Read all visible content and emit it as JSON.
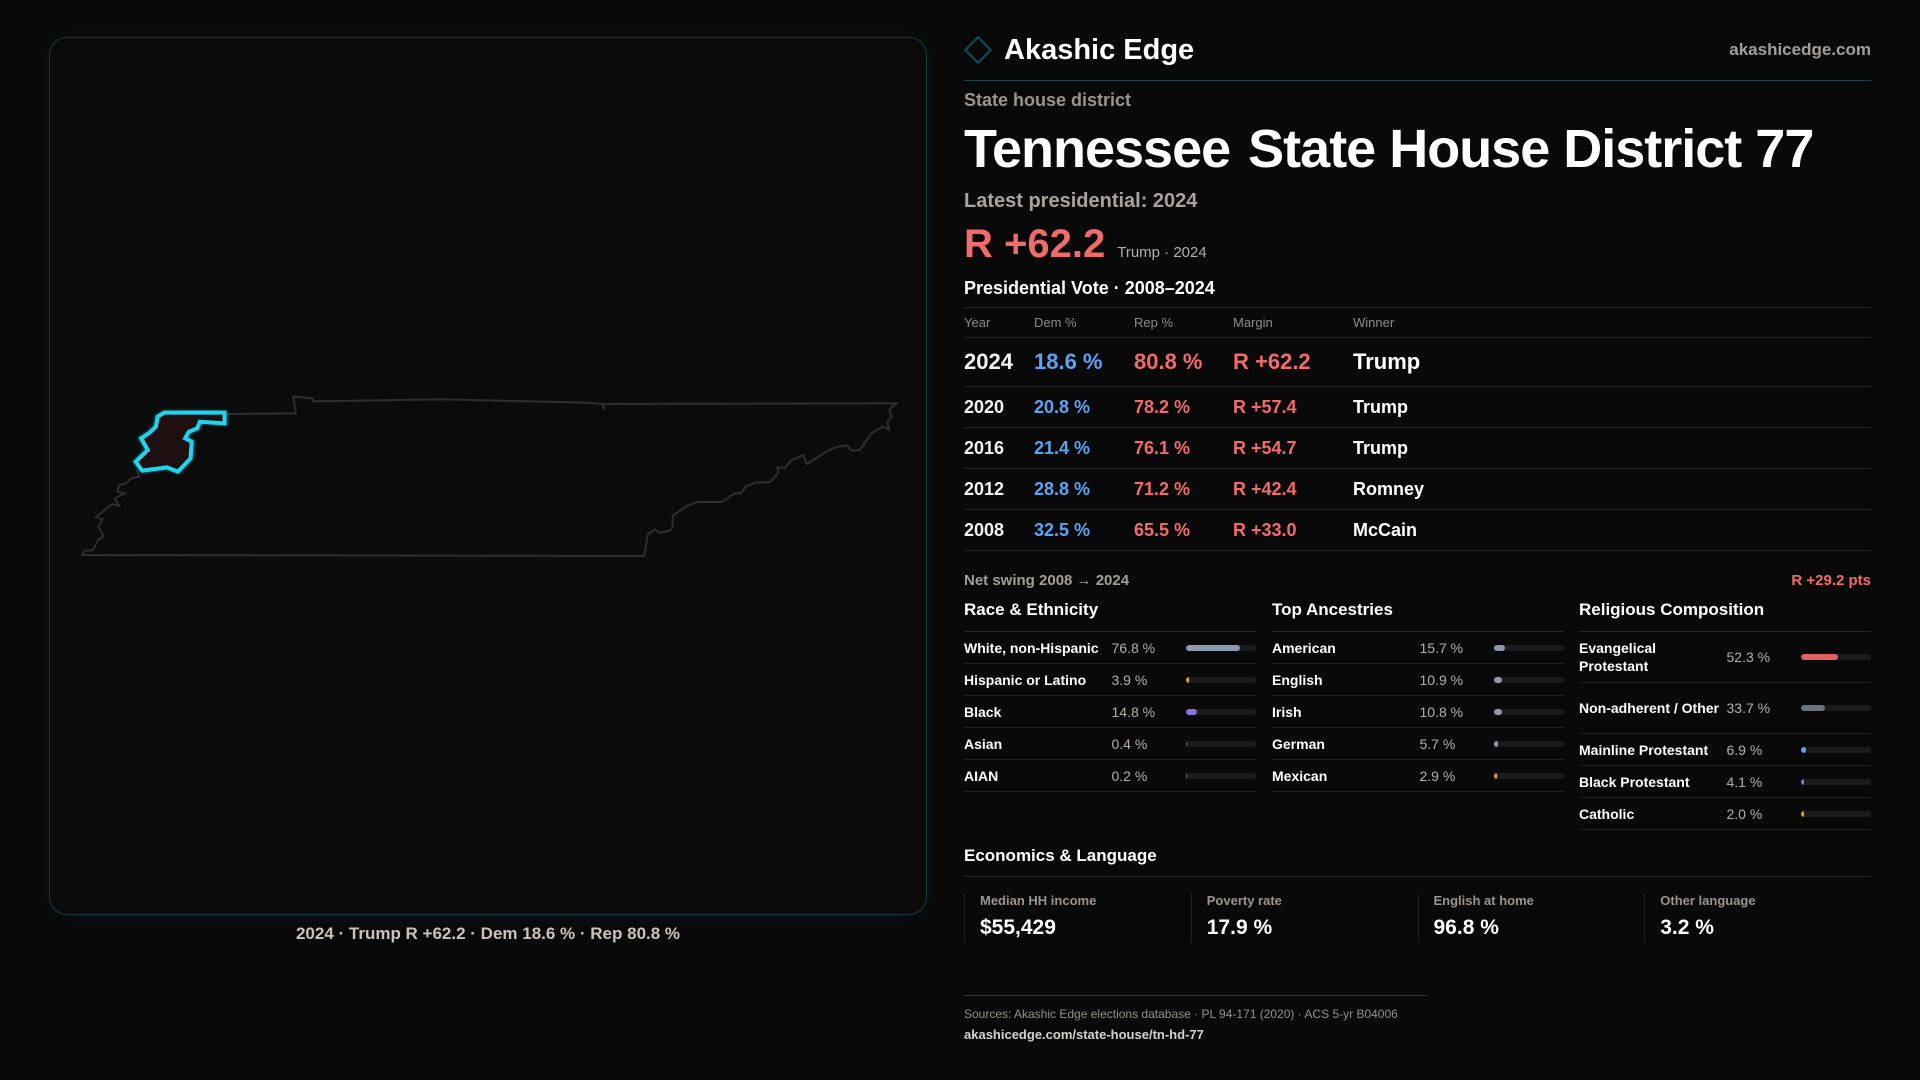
{
  "brand": {
    "name": "Akashic Edge",
    "site": "akashicedge.com"
  },
  "colors": {
    "accent": "#22d3ee",
    "rep": "#f26b6b",
    "dem": "#5ba4f5",
    "background": "#0a090a"
  },
  "kicker": "State house district",
  "title": {
    "state": "Tennessee",
    "district": "State House District 77"
  },
  "latest": "Latest presidential: 2024",
  "headline": {
    "margin": "R +62.2",
    "sub": "Trump · 2024"
  },
  "presidential": {
    "title": "Presidential Vote · 2008–2024",
    "headers": [
      "Year",
      "Dem %",
      "Rep %",
      "Margin",
      "Winner"
    ],
    "rows": [
      {
        "year": "2024",
        "dem": "18.6 %",
        "rep": "80.8 %",
        "margin": "R +62.2",
        "winner": "Trump"
      },
      {
        "year": "2020",
        "dem": "20.8 %",
        "rep": "78.2 %",
        "margin": "R +57.4",
        "winner": "Trump"
      },
      {
        "year": "2016",
        "dem": "21.4 %",
        "rep": "76.1 %",
        "margin": "R +54.7",
        "winner": "Trump"
      },
      {
        "year": "2012",
        "dem": "28.8 %",
        "rep": "71.2 %",
        "margin": "R +42.4",
        "winner": "Romney"
      },
      {
        "year": "2008",
        "dem": "32.5 %",
        "rep": "65.5 %",
        "margin": "R +33.0",
        "winner": "McCain"
      }
    ]
  },
  "swing": {
    "label": "Net swing 2008 → 2024",
    "value": "R +29.2 pts"
  },
  "race": {
    "title": "Race & Ethnicity",
    "rows": [
      {
        "label": "White, non-Hispanic",
        "pct": "76.8 %",
        "value": 76.8,
        "color": "#8a9bb0"
      },
      {
        "label": "Hispanic or Latino",
        "pct": "3.9 %",
        "value": 3.9,
        "color": "#e0a030"
      },
      {
        "label": "Black",
        "pct": "14.8 %",
        "value": 14.8,
        "color": "#8b72e0"
      },
      {
        "label": "Asian",
        "pct": "0.4 %",
        "value": 0.4,
        "color": "#3a9a8a"
      },
      {
        "label": "AIAN",
        "pct": "0.2 %",
        "value": 0.2,
        "color": "#c07050"
      }
    ]
  },
  "ancestry": {
    "title": "Top Ancestries",
    "rows": [
      {
        "label": "American",
        "pct": "15.7 %",
        "value": 15.7,
        "color": "#8a9bb0"
      },
      {
        "label": "English",
        "pct": "10.9 %",
        "value": 10.9,
        "color": "#8a9bb0"
      },
      {
        "label": "Irish",
        "pct": "10.8 %",
        "value": 10.8,
        "color": "#8a9bb0"
      },
      {
        "label": "German",
        "pct": "5.7 %",
        "value": 5.7,
        "color": "#8a9bb0"
      },
      {
        "label": "Mexican",
        "pct": "2.9 %",
        "value": 2.9,
        "color": "#e0a030"
      }
    ]
  },
  "religion": {
    "title": "Religious Composition",
    "rows": [
      {
        "label": "Evangelical Protestant",
        "pct": "52.3 %",
        "value": 52.3,
        "color": "#e06060"
      },
      {
        "label": "Non-adherent / Other",
        "pct": "33.7 %",
        "value": 33.7,
        "color": "#6b7280"
      },
      {
        "label": "Mainline Protestant",
        "pct": "6.9 %",
        "value": 6.9,
        "color": "#5ba4f5"
      },
      {
        "label": "Black Protestant",
        "pct": "4.1 %",
        "value": 4.1,
        "color": "#8b72e0"
      },
      {
        "label": "Catholic",
        "pct": "2.0 %",
        "value": 2.0,
        "color": "#e0a030"
      }
    ]
  },
  "economics": {
    "title": "Economics & Language",
    "cards": [
      {
        "label": "Median HH income",
        "value": "$55,429"
      },
      {
        "label": "Poverty rate",
        "value": "17.9 %"
      },
      {
        "label": "English at home",
        "value": "96.8 %"
      },
      {
        "label": "Other language",
        "value": "3.2 %"
      }
    ]
  },
  "map": {
    "caption": "2024 · Trump R +62.2 · Dem 18.6 % · Rep 80.8 %"
  },
  "footer": {
    "sources": "Sources: Akashic Edge elections database · PL 94-171 (2020) · ACS 5-yr B04006",
    "url": "akashicedge.com/state-house/tn-hd-77"
  }
}
